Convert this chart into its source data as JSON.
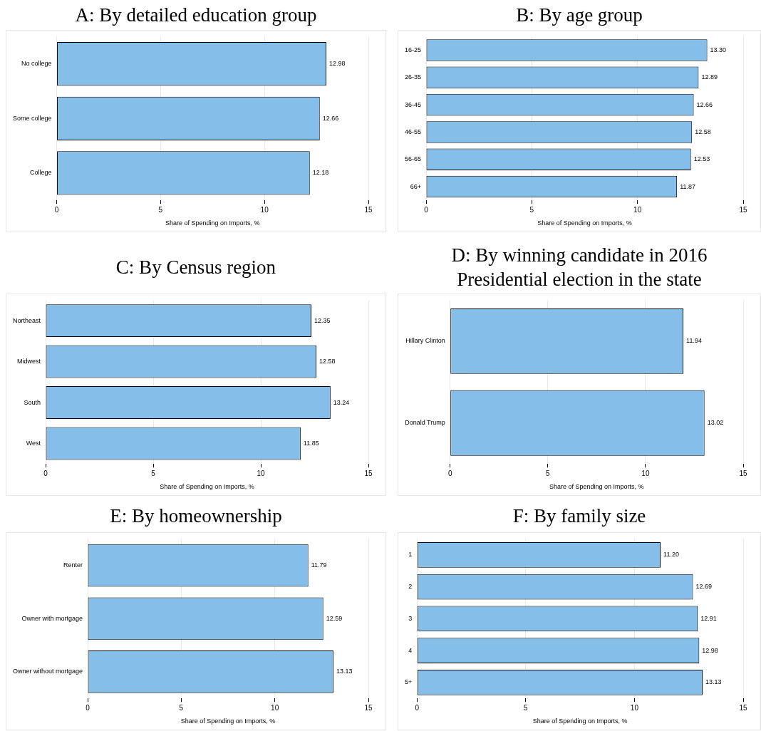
{
  "chart_data": [
    {
      "type": "bar",
      "orientation": "horizontal",
      "title": "A: By detailed education group",
      "categories": [
        "No college",
        "Some college",
        "College"
      ],
      "values": [
        12.98,
        12.66,
        12.18
      ],
      "value_labels": [
        "12.98",
        "12.66",
        "12.18"
      ],
      "color": "#85bfe9",
      "xlim": [
        0,
        15
      ],
      "xticks": [
        0,
        5,
        10,
        15
      ],
      "xlabel": "Share of Spending on Imports, %",
      "grid": "x"
    },
    {
      "type": "bar",
      "orientation": "horizontal",
      "title": "B: By age group",
      "categories": [
        "16-25",
        "26-35",
        "36-45",
        "46-55",
        "56-65",
        "66+"
      ],
      "values": [
        13.3,
        12.89,
        12.66,
        12.58,
        12.53,
        11.87
      ],
      "value_labels": [
        "13.30",
        "12.89",
        "12.66",
        "12.58",
        "12.53",
        "11.87"
      ],
      "color": "#85bfe9",
      "xlim": [
        0,
        15
      ],
      "xticks": [
        0,
        5,
        10,
        15
      ],
      "xlabel": "Share of Spending on Imports, %",
      "grid": "x"
    },
    {
      "type": "bar",
      "orientation": "horizontal",
      "title": "C: By Census region",
      "categories": [
        "Northeast",
        "Midwest",
        "South",
        "West"
      ],
      "values": [
        12.35,
        12.58,
        13.24,
        11.85
      ],
      "value_labels": [
        "12.35",
        "12.58",
        "13.24",
        "11.85"
      ],
      "color": "#85bfe9",
      "xlim": [
        0,
        15
      ],
      "xticks": [
        0,
        5,
        10,
        15
      ],
      "xlabel": "Share of Spending on Imports, %",
      "grid": "x"
    },
    {
      "type": "bar",
      "orientation": "horizontal",
      "title": "D: By winning candidate in 2016 Presidential election in the state",
      "categories": [
        "Hillary Clinton",
        "Donald Trump"
      ],
      "values": [
        11.94,
        13.02
      ],
      "value_labels": [
        "11.94",
        "13.02"
      ],
      "color": "#85bfe9",
      "xlim": [
        0,
        15
      ],
      "xticks": [
        0,
        5,
        10,
        15
      ],
      "xlabel": "Share of Spending on Imports, %",
      "grid": "x"
    },
    {
      "type": "bar",
      "orientation": "horizontal",
      "title": "E: By homeownership",
      "categories": [
        "Renter",
        "Owner with mortgage",
        "Owner without mortgage"
      ],
      "values": [
        11.79,
        12.59,
        13.13
      ],
      "value_labels": [
        "11.79",
        "12.59",
        "13.13"
      ],
      "color": "#85bfe9",
      "xlim": [
        0,
        15
      ],
      "xticks": [
        0,
        5,
        10,
        15
      ],
      "xlabel": "Share of Spending on Imports, %",
      "grid": "x"
    },
    {
      "type": "bar",
      "orientation": "horizontal",
      "title": "F: By family size",
      "categories": [
        "1",
        "2",
        "3",
        "4",
        "5+"
      ],
      "values": [
        11.2,
        12.69,
        12.91,
        12.98,
        13.13
      ],
      "value_labels": [
        "11.20",
        "12.69",
        "12.91",
        "12.98",
        "13.13"
      ],
      "color": "#85bfe9",
      "xlim": [
        0,
        15
      ],
      "xticks": [
        0,
        5,
        10,
        15
      ],
      "xlabel": "Share of Spending on Imports, %",
      "grid": "x"
    }
  ]
}
